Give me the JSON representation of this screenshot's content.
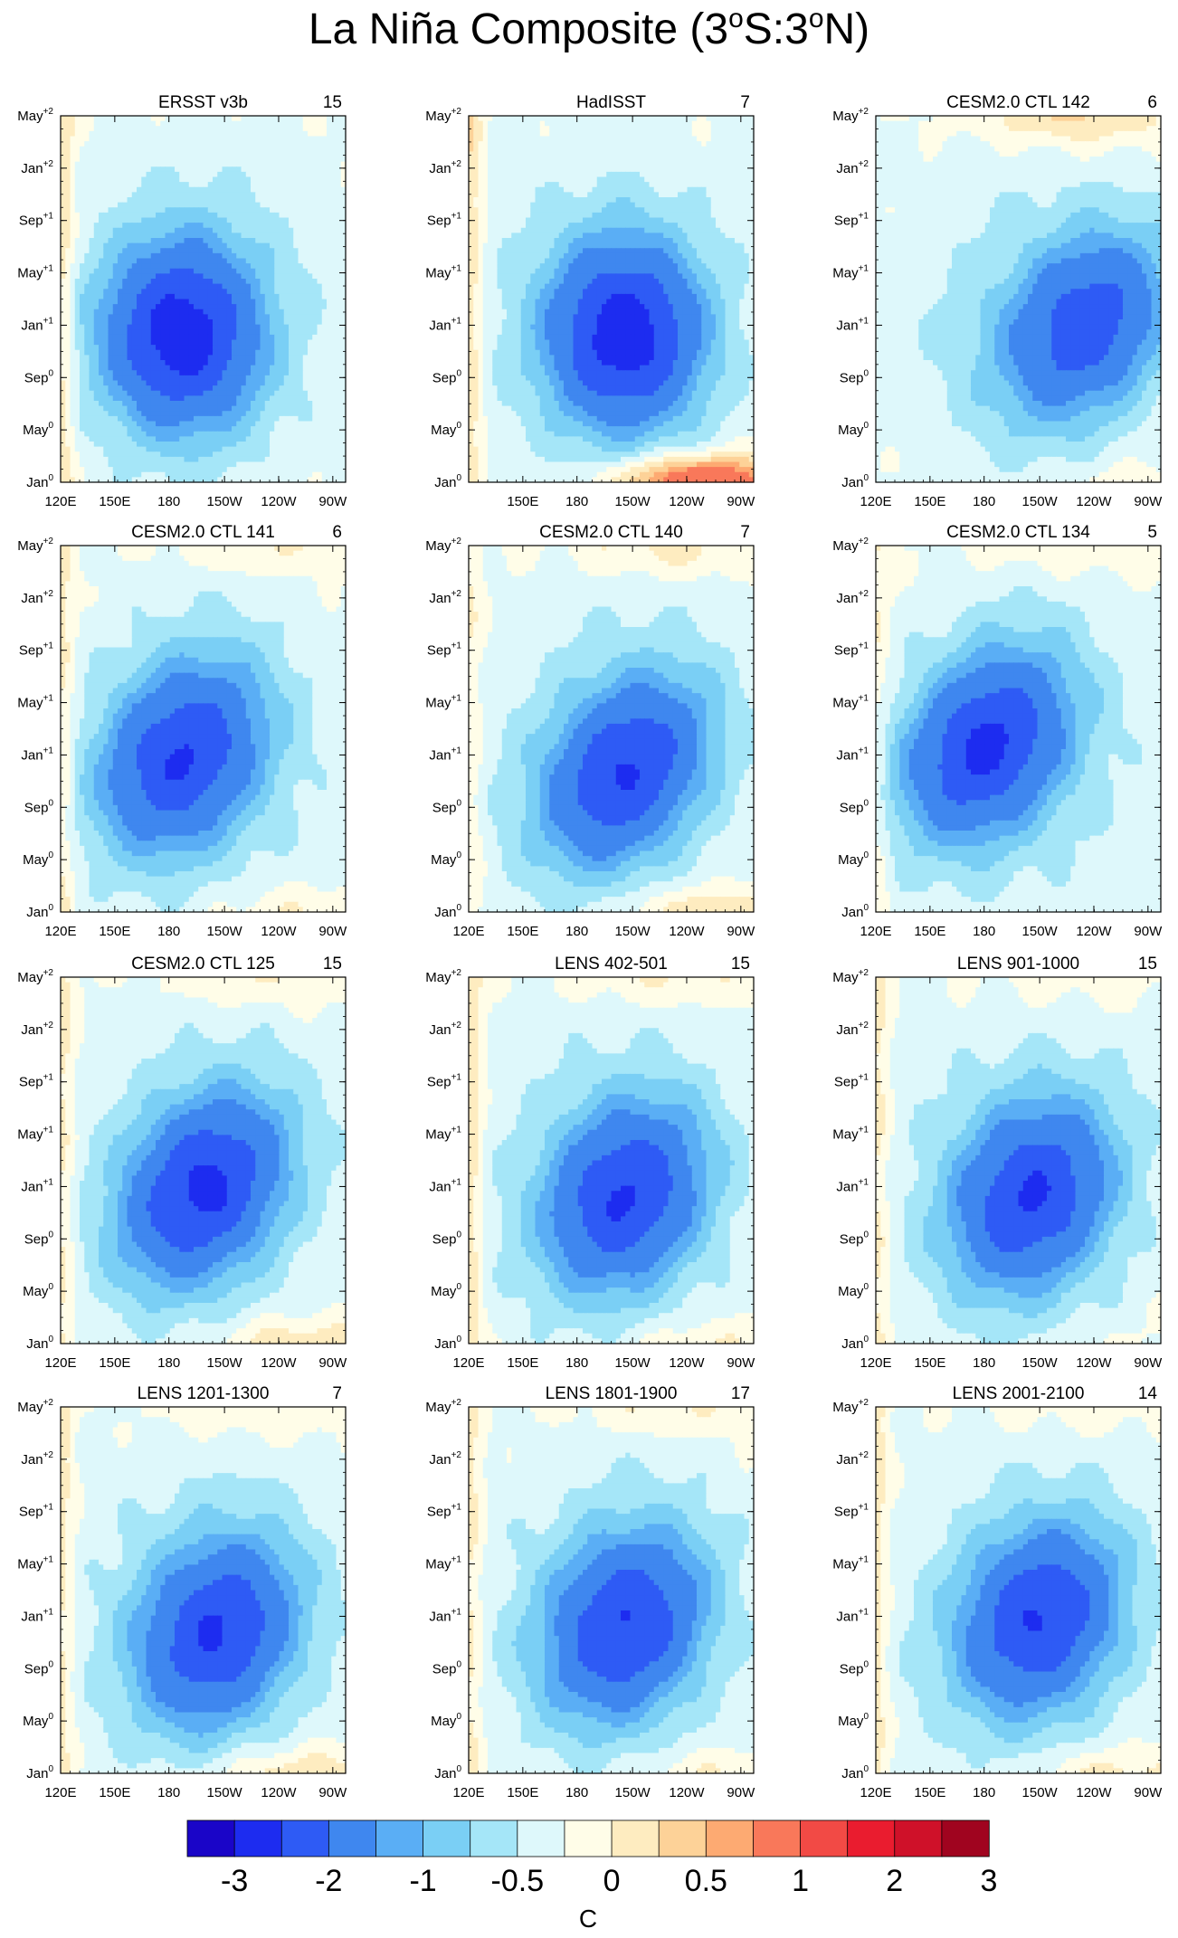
{
  "title": "La Niña Composite (3°S:3°N)",
  "title_parts": {
    "lead": "La Niña Composite (3",
    "sup1": "o",
    "mid": "S:3",
    "sup2": "o",
    "tail": "N)"
  },
  "chart_data": {
    "type": "heatmap",
    "description_axes": {
      "x": "longitude",
      "y": "lagged month"
    },
    "x_ticks": [
      "120E",
      "150E",
      "180",
      "150W",
      "120W",
      "90W"
    ],
    "y_ticks": [
      {
        "m": "Jan",
        "s": "0"
      },
      {
        "m": "May",
        "s": "0"
      },
      {
        "m": "Sep",
        "s": "0"
      },
      {
        "m": "Jan",
        "s": "+1"
      },
      {
        "m": "May",
        "s": "+1"
      },
      {
        "m": "Sep",
        "s": "+1"
      },
      {
        "m": "Jan",
        "s": "+2"
      },
      {
        "m": "May",
        "s": "+2"
      }
    ],
    "panels": [
      {
        "name": "ERSST v3b",
        "count": "15",
        "core": -2.0,
        "lon": 0.42,
        "lat": 0.4,
        "slope": 0.0,
        "warm_bottom": 0.0,
        "warm_top": 0.0,
        "west_warm": 0.5,
        "show_120E": true
      },
      {
        "name": "HadISST",
        "count": "7",
        "core": -2.0,
        "lon": 0.55,
        "lat": 0.4,
        "slope": 0.0,
        "warm_bottom": 1.6,
        "warm_top": 0.0,
        "west_warm": 0.5,
        "show_120E": false
      },
      {
        "name": "CESM2.0 CTL 142",
        "count": "6",
        "core": -1.6,
        "lon": 0.75,
        "lat": 0.43,
        "slope": 0.35,
        "warm_bottom": 0.2,
        "warm_top": 0.6,
        "west_warm": 0.0,
        "show_120E": true
      },
      {
        "name": "CESM2.0 CTL 141",
        "count": "6",
        "core": -1.7,
        "lon": 0.42,
        "lat": 0.42,
        "slope": 0.3,
        "warm_bottom": 0.3,
        "warm_top": 0.3,
        "west_warm": 0.4,
        "show_120E": true
      },
      {
        "name": "CESM2.0 CTL 140",
        "count": "7",
        "core": -1.7,
        "lon": 0.55,
        "lat": 0.38,
        "slope": 0.4,
        "warm_bottom": 0.5,
        "warm_top": 0.4,
        "west_warm": 0.3,
        "show_120E": true
      },
      {
        "name": "CESM2.0 CTL 134",
        "count": "5",
        "core": -1.8,
        "lon": 0.38,
        "lat": 0.45,
        "slope": 0.35,
        "warm_bottom": 0.0,
        "warm_top": 0.3,
        "west_warm": 0.3,
        "show_120E": true
      },
      {
        "name": "CESM2.0 CTL 125",
        "count": "15",
        "core": -1.8,
        "lon": 0.5,
        "lat": 0.42,
        "slope": 0.35,
        "warm_bottom": 0.5,
        "warm_top": 0.3,
        "west_warm": 0.4,
        "show_120E": true
      },
      {
        "name": "LENS 402-501",
        "count": "15",
        "core": -1.7,
        "lon": 0.55,
        "lat": 0.4,
        "slope": 0.25,
        "warm_bottom": 0.3,
        "warm_top": 0.3,
        "west_warm": 0.5,
        "show_120E": true
      },
      {
        "name": "LENS 901-1000",
        "count": "15",
        "core": -1.7,
        "lon": 0.55,
        "lat": 0.4,
        "slope": 0.25,
        "warm_bottom": 0.1,
        "warm_top": 0.2,
        "west_warm": 0.4,
        "show_120E": true
      },
      {
        "name": "LENS 1201-1300",
        "count": "7",
        "core": -1.7,
        "lon": 0.55,
        "lat": 0.38,
        "slope": 0.25,
        "warm_bottom": 0.5,
        "warm_top": 0.3,
        "west_warm": 0.4,
        "show_120E": true
      },
      {
        "name": "LENS 1801-1900",
        "count": "17",
        "core": -1.7,
        "lon": 0.55,
        "lat": 0.4,
        "slope": 0.25,
        "warm_bottom": 0.3,
        "warm_top": 0.3,
        "west_warm": 0.4,
        "show_120E": true
      },
      {
        "name": "LENS 2001-2100",
        "count": "14",
        "core": -1.7,
        "lon": 0.58,
        "lat": 0.42,
        "slope": 0.25,
        "warm_bottom": 0.4,
        "warm_top": 0.2,
        "west_warm": 0.4,
        "show_120E": true
      }
    ],
    "colorbar": {
      "colors": [
        "#1a05c8",
        "#1d2cf0",
        "#2e5bf5",
        "#3f87ef",
        "#5aaef5",
        "#7acff5",
        "#a5e6f8",
        "#def8fb",
        "#fffde8",
        "#feecc0",
        "#fdd298",
        "#fdaa72",
        "#f9785a",
        "#f24a45",
        "#ea1c2f",
        "#cf1129",
        "#a0041f"
      ],
      "levels": [
        -3,
        -2.5,
        -2,
        -1.5,
        -1,
        -0.75,
        -0.5,
        -0.25,
        0,
        0.25,
        0.5,
        0.75,
        1,
        1.5,
        2,
        2.5,
        3
      ],
      "labels": [
        "-3",
        "-2",
        "-1",
        "-0.5",
        "0",
        "0.5",
        "1",
        "2",
        "3"
      ],
      "units": "C"
    }
  }
}
